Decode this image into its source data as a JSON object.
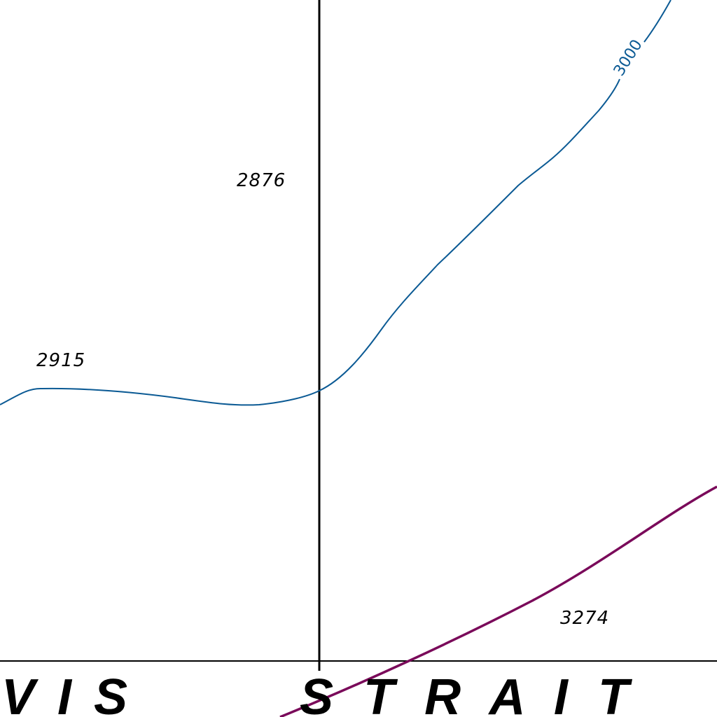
{
  "soundings": [
    {
      "id": "sounding-2876",
      "value": "2876"
    },
    {
      "id": "sounding-2915",
      "value": "2915"
    },
    {
      "id": "sounding-3274",
      "value": "3274"
    }
  ],
  "contour": {
    "label": "3000",
    "color": "#0b5a94"
  },
  "boundary": {
    "color": "#7a0a5a"
  },
  "grid": {
    "color": "#000000"
  },
  "water_name": {
    "left_part": "V I S",
    "right_part": "S T R A I T"
  }
}
